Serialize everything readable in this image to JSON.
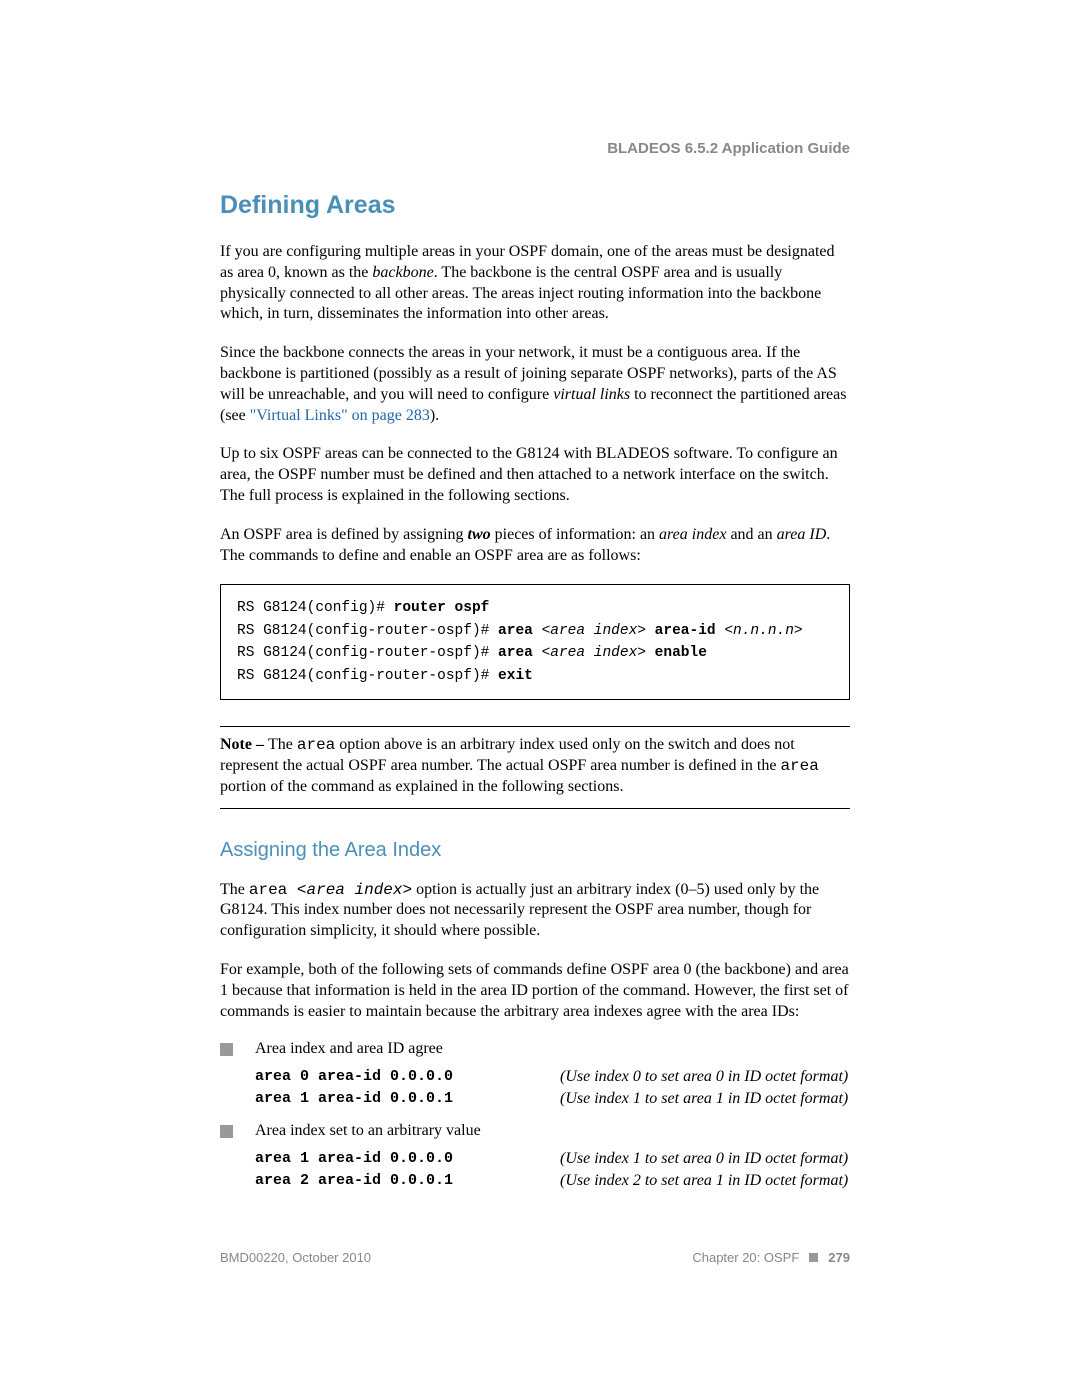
{
  "header": {
    "title": "BLADEOS 6.5.2 Application Guide"
  },
  "section": {
    "title": "Defining Areas"
  },
  "para1": {
    "t1": "If you are configuring multiple areas in your OSPF domain, one of the areas must be designated as area 0, known as the ",
    "backbone": "backbone",
    "t2": ". The backbone is the central OSPF area and is usually physically connected to all other areas. The areas inject routing information into the backbone which, in turn, disseminates the information into other areas."
  },
  "para2": {
    "t1": "Since the backbone connects the areas in your network, it must be a contiguous area. If the backbone is partitioned (possibly as a result of joining separate OSPF networks), parts of the AS will be unreachable, and you will need to configure ",
    "vlinks": "virtual links",
    "t2": " to reconnect the partitioned areas (see ",
    "link": "\"Virtual Links\" on page 283",
    "t3": ")."
  },
  "para3": "Up to six OSPF areas can be connected to the G8124 with BLADEOS software. To configure an area, the OSPF number must be defined and then attached to a network interface on the switch. The full process is explained in the following sections.",
  "para4": {
    "t1": "An OSPF area is defined by assigning ",
    "two": "two",
    "t2": " pieces of information: an ",
    "ai": "area index",
    "t3": " and an ",
    "aid": "area ID",
    "t4": ". The commands to define and enable an OSPF area are as follows:"
  },
  "codebox": {
    "l1a": "RS G8124(config)# ",
    "l1b": "router ospf",
    "l2a": "RS G8124(config-router-ospf)# ",
    "l2b": "area ",
    "l2c": "<area index>",
    "l2d": " area-id ",
    "l2e": "<n.n.n.n>",
    "l3a": "RS G8124(config-router-ospf)# ",
    "l3b": "area ",
    "l3c": "<area index>",
    "l3d": " enable",
    "l4a": "RS G8124(config-router-ospf)# ",
    "l4b": "exit"
  },
  "note": {
    "label": "Note – ",
    "t1": "The ",
    "area1": "area",
    "t2": " option above is an arbitrary index used only on the switch and does not represent the actual OSPF area number. The actual OSPF area number is defined in the ",
    "area2": "area",
    "t3": " portion of the command as explained in the following sections."
  },
  "subsection": {
    "title": "Assigning the Area Index"
  },
  "para5": {
    "t1": "The ",
    "area": "area ",
    "ai": "<area index>",
    "t2": " option is actually just an arbitrary index (0–5) used only by the G8124. This index number does not necessarily represent the OSPF area number, though for configuration simplicity, it should where possible."
  },
  "para6": "For example, both of the following sets of commands define OSPF area 0 (the backbone) and area 1 because that information is held in the area ID portion of the command. However, the first set of commands is easier to maintain because the arbitrary area indexes agree with the area IDs:",
  "bullets": {
    "b1": "Area index and area ID agree",
    "b2": "Area index set to an arbitrary value"
  },
  "examples1": [
    {
      "cmd": "area 0 area-id 0.0.0.0",
      "note": "(Use index 0 to set area 0 in ID octet format)"
    },
    {
      "cmd": "area 1 area-id 0.0.0.1",
      "note": "(Use index 1 to set area 1 in ID octet format)"
    }
  ],
  "examples2": [
    {
      "cmd": "area 1 area-id 0.0.0.0",
      "note": "(Use index 1 to set area 0 in ID octet format)"
    },
    {
      "cmd": "area 2 area-id 0.0.0.1",
      "note": "(Use index 2 to set area 1 in ID octet format)"
    }
  ],
  "footer": {
    "left": "BMD00220, October 2010",
    "chapter": "Chapter 20: OSPF",
    "page": "279"
  },
  "colors": {
    "heading": "#4a8fb8",
    "muted": "#888888",
    "bullet": "#999999",
    "link": "#2266aa"
  }
}
